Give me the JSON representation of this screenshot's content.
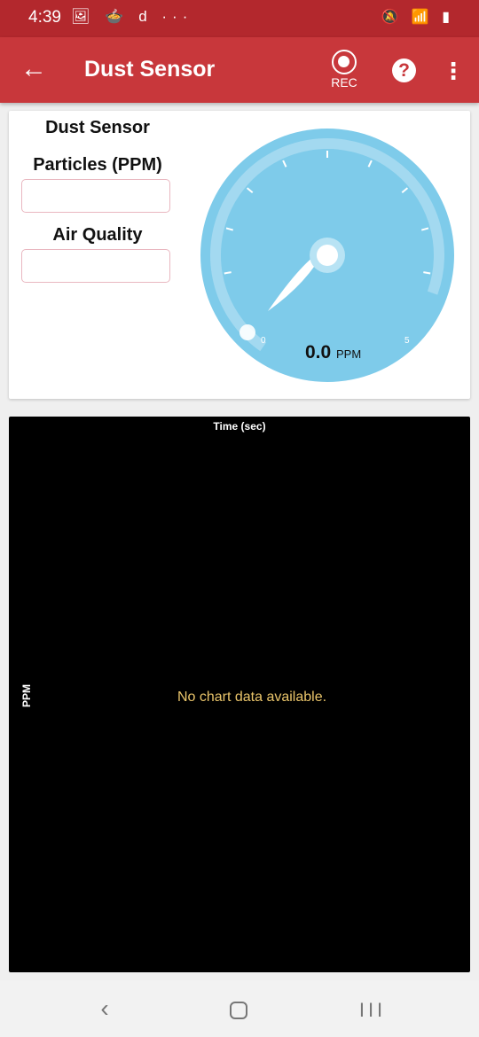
{
  "status_bar": {
    "time": "4:39",
    "left_icons": "🖼 🍲 d ···",
    "right_icons": "🔕 📶 ▮"
  },
  "app_bar": {
    "title": "Dust Sensor",
    "rec_label": "REC",
    "help_glyph": "?",
    "more_glyph": "⋮",
    "back_glyph": "←"
  },
  "panel": {
    "heading": "Dust Sensor",
    "particles_label": "Particles (PPM)",
    "particles_value": "",
    "air_quality_label": "Air Quality",
    "air_quality_value": ""
  },
  "gauge": {
    "value": 0.0,
    "value_text": "0.0",
    "unit": "PPM",
    "min_label": "0",
    "max_label": "5",
    "min": 0,
    "max": 5,
    "colors": {
      "face": "#7ecbea",
      "ring": "#a9dcf1",
      "needle": "#ffffff"
    }
  },
  "chart": {
    "x_title": "Time (sec)",
    "y_title": "PPM",
    "empty_message": "No chart data available."
  },
  "nav_bar": {
    "back_glyph": "‹",
    "recents_glyph": "III"
  },
  "colors": {
    "status_bar": "#b3282d",
    "app_bar": "#c8373b",
    "chart_bg": "#000000",
    "empty_text": "#e9c46a"
  }
}
